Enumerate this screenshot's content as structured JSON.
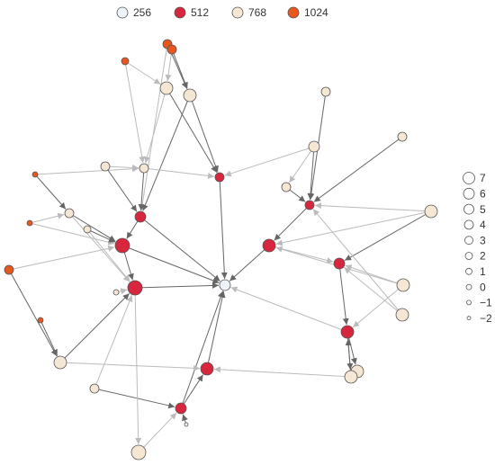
{
  "color_legend": {
    "items": [
      "256",
      "512",
      "768",
      "1024"
    ]
  },
  "size_legend": {
    "items": [
      "7",
      "6",
      "5",
      "4",
      "3",
      "2",
      "1",
      "0",
      "−1",
      "−2"
    ]
  }
}
